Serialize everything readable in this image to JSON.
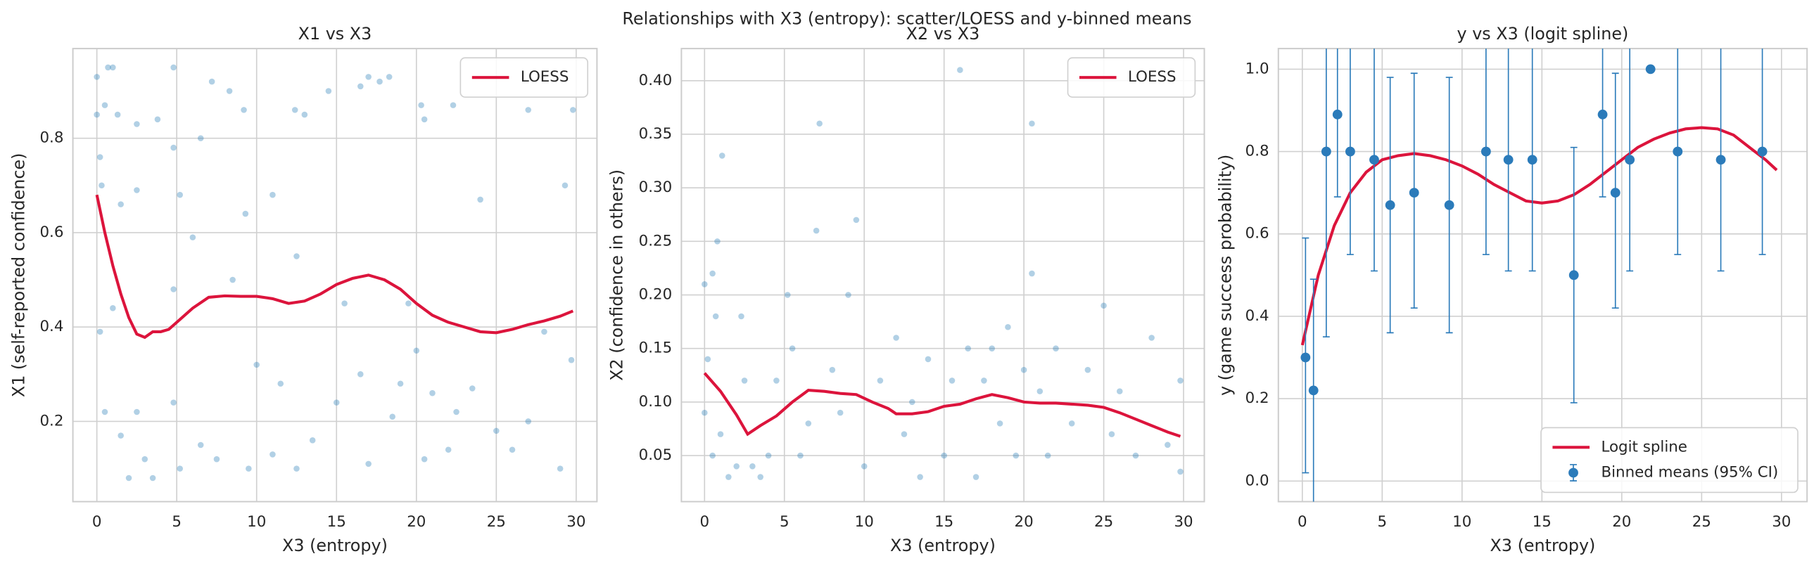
{
  "title": "Relationships with X3 (entropy): scatter/LOESS and y-binned means",
  "chart_data": [
    {
      "type": "scatter",
      "title": "X1 vs X3",
      "xlabel": "X3 (entropy)",
      "ylabel": "X1 (self-reported confidence)",
      "xlim": [
        -1.5,
        31.3
      ],
      "ylim": [
        0.03,
        0.99
      ],
      "xticks": [
        0,
        5,
        10,
        15,
        20,
        25,
        30
      ],
      "yticks": [
        0.2,
        0.4,
        0.6,
        0.8
      ],
      "grid": true,
      "legend": "upper right",
      "series": [
        {
          "kind": "points",
          "color": "#1f77b4",
          "x": [
            0,
            0,
            0.2,
            0.3,
            0.5,
            0.7,
            1,
            1.3,
            1.5,
            2.5,
            2.5,
            3.8,
            4.8,
            4.8,
            5.2,
            6.5,
            7.2,
            8.3,
            9.2,
            9.3,
            11,
            12.4,
            13,
            14.5,
            16.5,
            17,
            17.7,
            18.3,
            20.3,
            20.5,
            22.3,
            24,
            27,
            29.8,
            29.3,
            0.2,
            0.5,
            1,
            1.5,
            2,
            2.5,
            3,
            3.5,
            4.8,
            5.2,
            6.5,
            7.5,
            9.5,
            10,
            11,
            11.5,
            12.5,
            13.5,
            15,
            16.5,
            17,
            18.5,
            19,
            20,
            20.5,
            21,
            22.5,
            23.5,
            25,
            27,
            28,
            29,
            29.7,
            26,
            22,
            19.5,
            15.5,
            12.5,
            8.5,
            4.8,
            6
          ],
          "values": [
            0.93,
            0.85,
            0.76,
            0.7,
            0.87,
            0.95,
            0.95,
            0.85,
            0.66,
            0.69,
            0.83,
            0.84,
            0.95,
            0.78,
            0.68,
            0.8,
            0.92,
            0.9,
            0.86,
            0.64,
            0.68,
            0.86,
            0.85,
            0.9,
            0.91,
            0.93,
            0.92,
            0.93,
            0.87,
            0.84,
            0.87,
            0.67,
            0.86,
            0.86,
            0.7,
            0.39,
            0.22,
            0.44,
            0.17,
            0.08,
            0.22,
            0.12,
            0.08,
            0.24,
            0.1,
            0.15,
            0.12,
            0.1,
            0.32,
            0.13,
            0.28,
            0.1,
            0.16,
            0.24,
            0.3,
            0.11,
            0.21,
            0.28,
            0.35,
            0.12,
            0.26,
            0.22,
            0.27,
            0.18,
            0.2,
            0.39,
            0.1,
            0.33,
            0.14,
            0.14,
            0.45,
            0.45,
            0.55,
            0.5,
            0.48,
            0.59
          ]
        },
        {
          "kind": "line",
          "name": "LOESS",
          "color": "#dc143c",
          "x": [
            0,
            0.5,
            1,
            1.5,
            2,
            2.5,
            3,
            3.5,
            4,
            4.5,
            5,
            6,
            7,
            8,
            9,
            10,
            11,
            12,
            13,
            14,
            15,
            16,
            17,
            18,
            19,
            20,
            21,
            22,
            23,
            24,
            25,
            26,
            27,
            28,
            29,
            29.8
          ],
          "values": [
            0.68,
            0.6,
            0.53,
            0.47,
            0.42,
            0.385,
            0.378,
            0.39,
            0.39,
            0.395,
            0.41,
            0.44,
            0.463,
            0.466,
            0.465,
            0.465,
            0.46,
            0.45,
            0.455,
            0.47,
            0.49,
            0.503,
            0.51,
            0.5,
            0.48,
            0.45,
            0.425,
            0.41,
            0.4,
            0.39,
            0.388,
            0.395,
            0.405,
            0.413,
            0.423,
            0.434
          ]
        }
      ]
    },
    {
      "type": "scatter",
      "title": "X2 vs X3",
      "xlabel": "X3 (entropy)",
      "ylabel": "X2 (confidence in others)",
      "xlim": [
        -1.45,
        31.3
      ],
      "ylim": [
        0.007,
        0.43
      ],
      "xticks": [
        0,
        5,
        10,
        15,
        20,
        25,
        30
      ],
      "yticks": [
        0.05,
        {
          "value": 0.1,
          "label": "0.10"
        },
        0.15,
        {
          "value": 0.2,
          "label": "0.20"
        },
        0.25,
        {
          "value": 0.3,
          "label": "0.30"
        },
        0.35,
        {
          "value": 0.4,
          "label": "0.40"
        }
      ],
      "grid": true,
      "legend": "upper right",
      "series": [
        {
          "kind": "points",
          "color": "#1f77b4",
          "x": [
            0,
            0.2,
            0.5,
            0.7,
            0.8,
            1.1,
            0,
            0.5,
            1,
            1.5,
            2,
            2.3,
            2.5,
            3,
            3.5,
            4,
            4.5,
            5.2,
            5.5,
            6,
            6.5,
            7,
            7.2,
            8,
            8.5,
            9,
            9.5,
            10,
            11,
            12,
            12.5,
            13,
            13.5,
            14,
            15,
            15.5,
            16,
            16.5,
            17,
            17.5,
            18,
            18.5,
            19,
            19.5,
            20,
            20.5,
            20.5,
            21,
            21.5,
            22,
            23,
            24,
            25,
            25.5,
            26,
            27,
            28,
            29,
            29.8,
            29.8
          ],
          "values": [
            0.21,
            0.14,
            0.22,
            0.18,
            0.25,
            0.33,
            0.09,
            0.05,
            0.07,
            0.03,
            0.04,
            0.18,
            0.12,
            0.04,
            0.03,
            0.05,
            0.12,
            0.2,
            0.15,
            0.05,
            0.08,
            0.26,
            0.36,
            0.13,
            0.09,
            0.2,
            0.27,
            0.04,
            0.12,
            0.16,
            0.07,
            0.1,
            0.03,
            0.14,
            0.05,
            0.12,
            0.41,
            0.15,
            0.03,
            0.12,
            0.15,
            0.08,
            0.17,
            0.05,
            0.13,
            0.36,
            0.22,
            0.11,
            0.05,
            0.15,
            0.08,
            0.13,
            0.19,
            0.07,
            0.11,
            0.05,
            0.16,
            0.06,
            0.12,
            0.035
          ]
        },
        {
          "kind": "line",
          "name": "LOESS",
          "color": "#dc143c",
          "x": [
            0,
            1,
            2,
            2.7,
            3.5,
            4.5,
            5.5,
            6.5,
            7.5,
            8.5,
            9.5,
            10.5,
            11.5,
            12,
            13,
            14,
            15,
            16,
            17,
            18,
            19,
            20,
            21,
            22,
            23,
            24,
            25,
            26,
            27,
            28,
            29,
            29.8
          ],
          "values": [
            0.127,
            0.11,
            0.088,
            0.07,
            0.078,
            0.087,
            0.1,
            0.111,
            0.11,
            0.108,
            0.107,
            0.1,
            0.094,
            0.089,
            0.089,
            0.091,
            0.096,
            0.098,
            0.103,
            0.107,
            0.104,
            0.1,
            0.099,
            0.099,
            0.098,
            0.097,
            0.095,
            0.09,
            0.084,
            0.078,
            0.072,
            0.068
          ]
        }
      ]
    },
    {
      "type": "scatter",
      "title": "y vs X3 (logit spline)",
      "xlabel": "X3 (entropy)",
      "ylabel": "y (game success probability)",
      "xlim": [
        -1.5,
        31.6
      ],
      "ylim": [
        -0.05,
        1.05
      ],
      "xticks": [
        0,
        5,
        10,
        15,
        20,
        25,
        30
      ],
      "yticks": [
        {
          "value": 0,
          "label": "0.0"
        },
        0.2,
        0.4,
        0.6,
        0.8,
        {
          "value": 1,
          "label": "1.0"
        }
      ],
      "grid": true,
      "legend": "lower right",
      "series": [
        {
          "kind": "line",
          "name": "Logit spline",
          "color": "#dc143c",
          "x": [
            0,
            1,
            2,
            3,
            4,
            5,
            6,
            7,
            8,
            9,
            10,
            11,
            12,
            13,
            14,
            15,
            16,
            17,
            18,
            19,
            20,
            21,
            22,
            23,
            24,
            25,
            26,
            27,
            28,
            29,
            29.7
          ],
          "values": [
            0.33,
            0.5,
            0.62,
            0.7,
            0.75,
            0.78,
            0.79,
            0.795,
            0.79,
            0.78,
            0.765,
            0.745,
            0.72,
            0.7,
            0.68,
            0.675,
            0.68,
            0.695,
            0.72,
            0.75,
            0.78,
            0.81,
            0.83,
            0.845,
            0.855,
            0.858,
            0.855,
            0.84,
            0.81,
            0.78,
            0.755
          ]
        },
        {
          "kind": "errorbar",
          "name": "Binned means (95% CI)",
          "color": "#2b7bba",
          "x": [
            0.2,
            0.7,
            1.5,
            2.2,
            3,
            4.5,
            5.5,
            7,
            9.2,
            11.5,
            12.9,
            14.4,
            17,
            18.8,
            19.6,
            20.5,
            21.8,
            23.5,
            26.2,
            28.8
          ],
          "values": [
            0.3,
            0.22,
            0.8,
            0.89,
            0.8,
            0.78,
            0.67,
            0.7,
            0.67,
            0.8,
            0.78,
            0.78,
            0.5,
            0.89,
            0.7,
            0.78,
            1,
            0.8,
            0.78,
            0.8
          ],
          "ci_low": [
            0.02,
            -0.1,
            0.35,
            0.69,
            0.55,
            0.51,
            0.36,
            0.42,
            0.36,
            0.55,
            0.51,
            0.51,
            0.19,
            0.69,
            0.42,
            0.51,
            1,
            0.55,
            0.51,
            0.55
          ],
          "ci_high": [
            0.59,
            0.49,
            1.2,
            1.2,
            1.2,
            1.2,
            0.98,
            0.99,
            0.98,
            1.2,
            1.2,
            1.2,
            0.81,
            1.2,
            0.99,
            1.2,
            1,
            1.2,
            1.2,
            1.2
          ]
        }
      ]
    }
  ]
}
